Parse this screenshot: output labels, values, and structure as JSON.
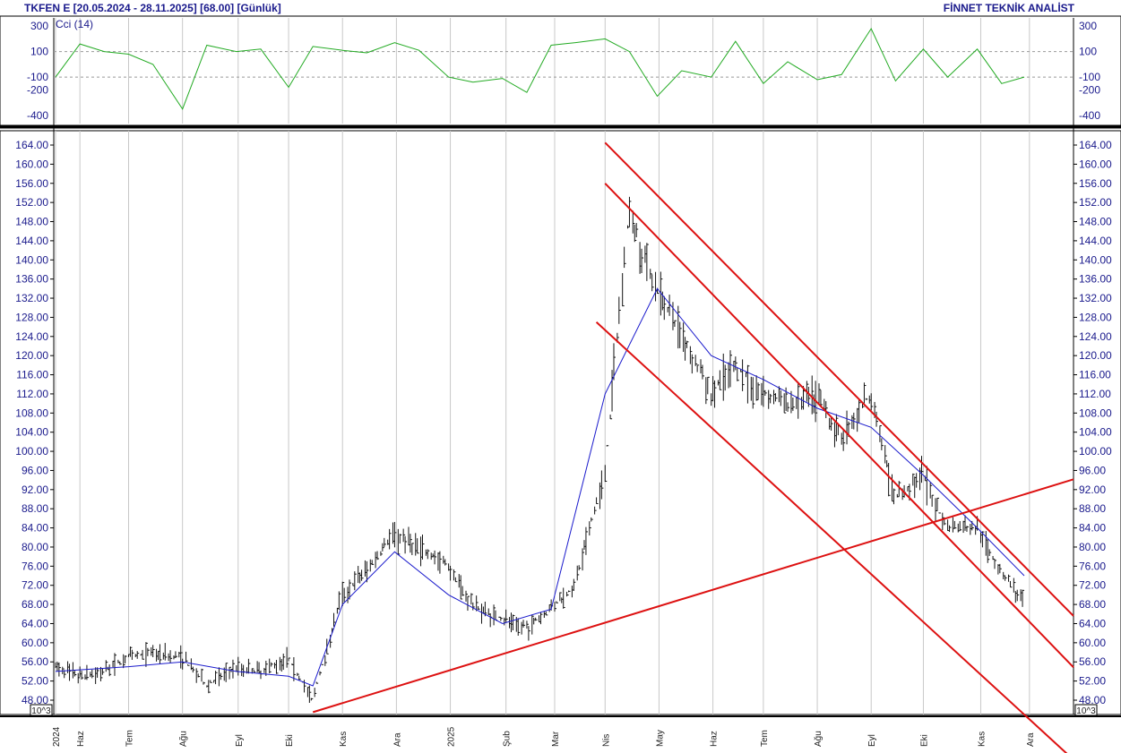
{
  "header": {
    "title": "TKFEN E  [20.05.2024 - 28.11.2025]  [68.00]  [Günlük]",
    "brand": "FİNNET TEKNİK ANALİST"
  },
  "cci_panel": {
    "label": "Cci (14)",
    "ticks": [
      "300",
      "100",
      "-100",
      "-200",
      "-400"
    ],
    "tick_values": [
      300,
      100,
      -100,
      -200,
      -400
    ],
    "ylim": [
      -450,
      350
    ],
    "levels": [
      100,
      -100
    ],
    "color": "#22aa22"
  },
  "price_panel": {
    "ticks": [
      "164.00",
      "160.00",
      "156.00",
      "152.00",
      "148.00",
      "144.00",
      "140.00",
      "136.00",
      "132.00",
      "128.00",
      "124.00",
      "120.00",
      "116.00",
      "112.00",
      "108.00",
      "104.00",
      "100.00",
      "96.00",
      "92.00",
      "88.00",
      "84.00",
      "80.00",
      "76.00",
      "72.00",
      "68.00",
      "64.00",
      "60.00",
      "56.00",
      "52.00",
      "48.00"
    ],
    "ylim": [
      45,
      166
    ],
    "scale_badge": "10^3",
    "bar_color": "#111111",
    "ma_color": "#1a1acc",
    "trend_color": "#dd1111"
  },
  "x_axis": {
    "months": [
      "2024",
      "Haz",
      "Tem",
      "Ağu",
      "Eyl",
      "Eki",
      "Kas",
      "Ara",
      "2025",
      "Şub",
      "Mar",
      "Nis",
      "May",
      "Haz",
      "Tem",
      "Ağu",
      "Eyl",
      "Eki",
      "Kas",
      "Ara"
    ],
    "gridline_color": "#c8c8c8"
  },
  "chart_data": {
    "type": "line",
    "title": "TKFEN E",
    "xlabel": "",
    "ylabel": "",
    "date_range": [
      "20.05.2024",
      "28.11.2025"
    ],
    "last_price": 68.0,
    "series": [
      {
        "x": [
          "2024-05-20",
          "2024-06-03",
          "2024-06-17",
          "2024-07-01",
          "2024-07-15",
          "2024-08-01",
          "2024-08-15",
          "2024-09-01",
          "2024-09-15",
          "2024-10-01",
          "2024-10-15",
          "2024-11-01",
          "2024-11-15",
          "2024-12-01",
          "2024-12-15",
          "2025-01-01",
          "2025-01-15",
          "2025-02-01",
          "2025-02-15",
          "2025-03-01",
          "2025-03-15",
          "2025-04-01",
          "2025-04-15",
          "2025-05-01",
          "2025-05-15",
          "2025-06-01",
          "2025-06-15",
          "2025-07-01",
          "2025-07-15",
          "2025-08-01",
          "2025-08-15",
          "2025-09-01",
          "2025-09-15",
          "2025-10-01",
          "2025-10-15",
          "2025-11-01",
          "2025-11-15",
          "2025-11-28"
        ],
        "values": [
          55,
          53,
          54,
          57,
          58,
          57,
          51,
          55,
          54,
          57,
          48,
          70,
          75,
          83,
          80,
          76,
          68,
          65,
          63,
          67,
          72,
          95,
          150,
          134,
          125,
          112,
          118,
          112,
          110,
          111,
          103,
          112,
          90,
          95,
          84,
          84,
          75,
          68
        ]
      },
      {
        "x": [
          "2024-05-20",
          "2024-07-01",
          "2024-08-01",
          "2024-09-01",
          "2024-10-01",
          "2024-10-15",
          "2024-11-01",
          "2024-12-01",
          "2025-01-01",
          "2025-02-01",
          "2025-03-01",
          "2025-04-01",
          "2025-05-01",
          "2025-06-01",
          "2025-07-01",
          "2025-08-01",
          "2025-09-01",
          "2025-10-01",
          "2025-11-01",
          "2025-11-28"
        ],
        "values": [
          54,
          55,
          56,
          54,
          53,
          51,
          68,
          79,
          70,
          64,
          67,
          112,
          134,
          120,
          115,
          109,
          105,
          95,
          84,
          74
        ]
      }
    ],
    "trendlines": [
      {
        "from": [
          "2024-10-15",
          45.5
        ],
        "to": [
          "2025-11-28",
          91
        ]
      },
      {
        "from": [
          "2025-04-01",
          164.5
        ],
        "to": [
          "2025-11-28",
          76
        ]
      },
      {
        "from": [
          "2025-04-01",
          156
        ],
        "to": [
          "2025-11-28",
          65.5
        ]
      },
      {
        "from": [
          "2025-03-27",
          127
        ],
        "to": [
          "2025-11-28",
          45
        ]
      }
    ],
    "cci": {
      "x": [
        "2024-05-20",
        "2024-06-03",
        "2024-06-17",
        "2024-07-01",
        "2024-07-15",
        "2024-08-01",
        "2024-08-15",
        "2024-09-01",
        "2024-09-15",
        "2024-10-01",
        "2024-10-15",
        "2024-11-01",
        "2024-11-15",
        "2024-12-01",
        "2024-12-15",
        "2025-01-01",
        "2025-01-15",
        "2025-02-01",
        "2025-02-15",
        "2025-03-01",
        "2025-03-15",
        "2025-04-01",
        "2025-04-15",
        "2025-05-01",
        "2025-05-15",
        "2025-06-01",
        "2025-06-15",
        "2025-07-01",
        "2025-07-15",
        "2025-08-01",
        "2025-08-15",
        "2025-09-01",
        "2025-09-15",
        "2025-10-01",
        "2025-10-15",
        "2025-11-01",
        "2025-11-15",
        "2025-11-28"
      ],
      "values": [
        -100,
        160,
        100,
        80,
        0,
        -350,
        150,
        100,
        120,
        -180,
        140,
        110,
        90,
        170,
        110,
        -100,
        -140,
        -110,
        -220,
        150,
        170,
        200,
        100,
        -250,
        -50,
        -100,
        180,
        -150,
        20,
        -120,
        -80,
        280,
        -130,
        120,
        -100,
        120,
        -150,
        -100
      ]
    }
  }
}
